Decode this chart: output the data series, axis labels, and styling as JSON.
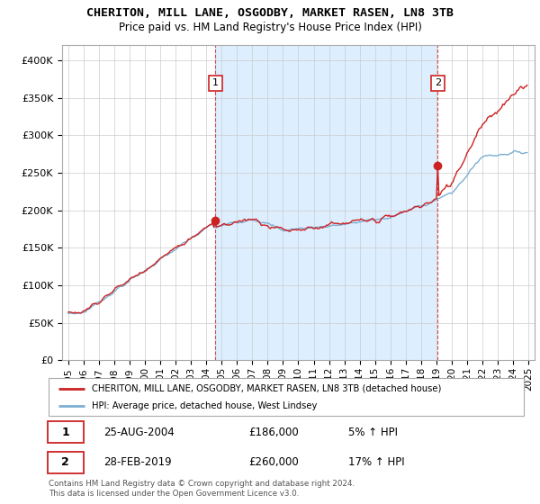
{
  "title": "CHERITON, MILL LANE, OSGODBY, MARKET RASEN, LN8 3TB",
  "subtitle": "Price paid vs. HM Land Registry's House Price Index (HPI)",
  "legend_line1": "CHERITON, MILL LANE, OSGODBY, MARKET RASEN, LN8 3TB (detached house)",
  "legend_line2": "HPI: Average price, detached house, West Lindsey",
  "transaction1_date": "25-AUG-2004",
  "transaction1_price": "£186,000",
  "transaction1_change": "5% ↑ HPI",
  "transaction2_date": "28-FEB-2019",
  "transaction2_price": "£260,000",
  "transaction2_change": "17% ↑ HPI",
  "footer": "Contains HM Land Registry data © Crown copyright and database right 2024.\nThis data is licensed under the Open Government Licence v3.0.",
  "hpi_color": "#7bafd4",
  "property_color": "#cc2222",
  "shade_color": "#ddeeff",
  "marker1_x_year": 2004.58,
  "marker2_x_year": 2019.08,
  "ylim_min": 0,
  "ylim_max": 420000,
  "xlim_min": 1994.6,
  "xlim_max": 2025.4
}
